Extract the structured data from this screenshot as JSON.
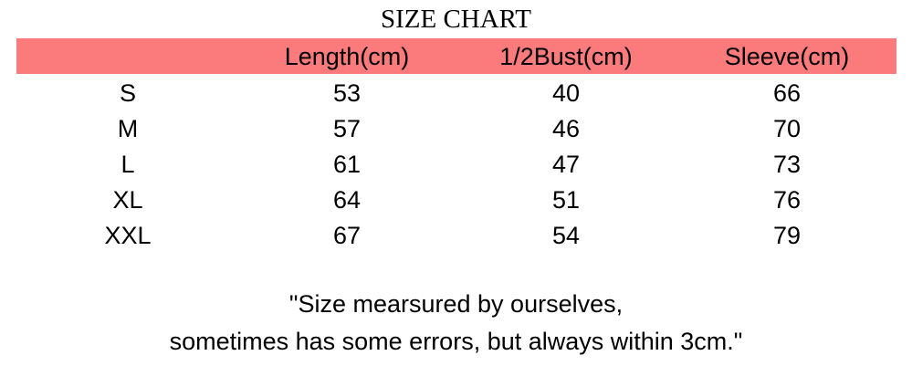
{
  "title": "SIZE CHART",
  "header_color": "#fb7a7b",
  "columns": [
    "",
    "Length(cm)",
    "1/2Bust(cm)",
    "Sleeve(cm)"
  ],
  "rows": [
    [
      "S",
      "53",
      "40",
      "66"
    ],
    [
      "M",
      "57",
      "46",
      "70"
    ],
    [
      "L",
      "61",
      "47",
      "73"
    ],
    [
      "XL",
      "64",
      "51",
      "76"
    ],
    [
      "XXL",
      "67",
      "54",
      "79"
    ]
  ],
  "note": [
    "\"Size mearsured by ourselves,",
    "sometimes has some errors, but always within 3cm.\""
  ]
}
